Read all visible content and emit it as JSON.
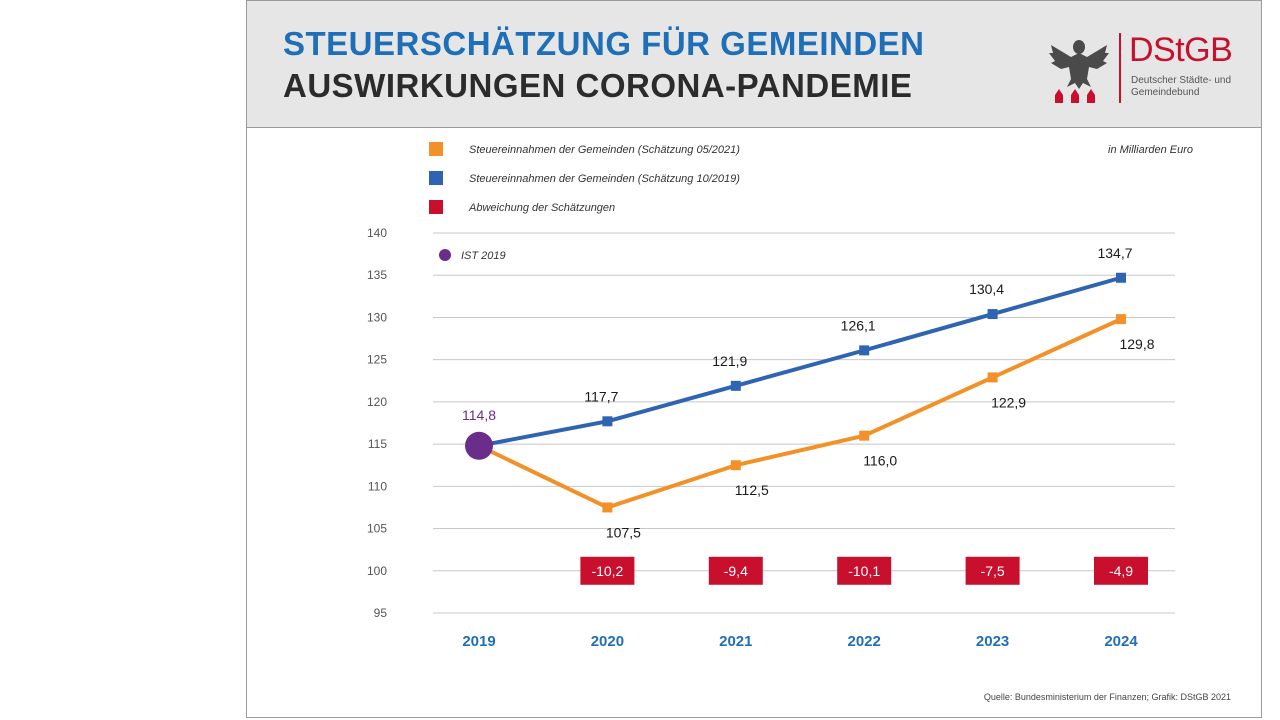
{
  "header": {
    "title_line1": "STEUERSCHÄTZUNG FÜR GEMEINDEN",
    "title_line2": "AUSWIRKUNGEN CORONA-PANDEMIE",
    "logo_abbr": "DStGB",
    "logo_sub": "Deutscher Städte- und Gemeindebund"
  },
  "colors": {
    "orange": "#f39129",
    "blue": "#2f64b3",
    "red": "#c8102e",
    "purple": "#6b2d8a",
    "title_blue": "#1f6fb8"
  },
  "chart_data": {
    "type": "line",
    "unit": "in Milliarden Euro",
    "x": [
      "2019",
      "2020",
      "2021",
      "2022",
      "2023",
      "2024"
    ],
    "ylim": [
      95,
      140
    ],
    "yticks": [
      95,
      100,
      105,
      110,
      115,
      120,
      125,
      130,
      135,
      140
    ],
    "grid": true,
    "legend_placement": "top",
    "series": [
      {
        "name": "Steuereinnahmen der Gemeinden (Schätzung 05/2021)",
        "color": "#f39129",
        "values": [
          114.8,
          107.5,
          112.5,
          116.0,
          122.9,
          129.8
        ],
        "labels": [
          "",
          "107,5",
          "112,5",
          "116,0",
          "122,9",
          "129,8"
        ]
      },
      {
        "name": "Steuereinnahmen der Gemeinden (Schätzung 10/2019)",
        "color": "#2f64b3",
        "values": [
          114.8,
          117.7,
          121.9,
          126.1,
          130.4,
          134.7
        ],
        "labels": [
          "",
          "117,7",
          "121,9",
          "126,1",
          "130,4",
          "134,7"
        ]
      }
    ],
    "deviation": {
      "name": "Abweichung der Schätzungen",
      "color": "#c8102e",
      "x": [
        "2020",
        "2021",
        "2022",
        "2023",
        "2024"
      ],
      "values": [
        -10.2,
        -9.4,
        -10.1,
        -7.5,
        -4.9
      ],
      "labels": [
        "-10,2",
        "-9,4",
        "-10,1",
        "-7,5",
        "-4,9"
      ],
      "plotted_at_y": 100
    },
    "ist": {
      "name": "IST 2019",
      "x": "2019",
      "value": 114.8,
      "label": "114,8",
      "color": "#6b2d8a"
    },
    "source": "Quelle: Bundesministerium der Finanzen; Grafik: DStGB 2021"
  }
}
